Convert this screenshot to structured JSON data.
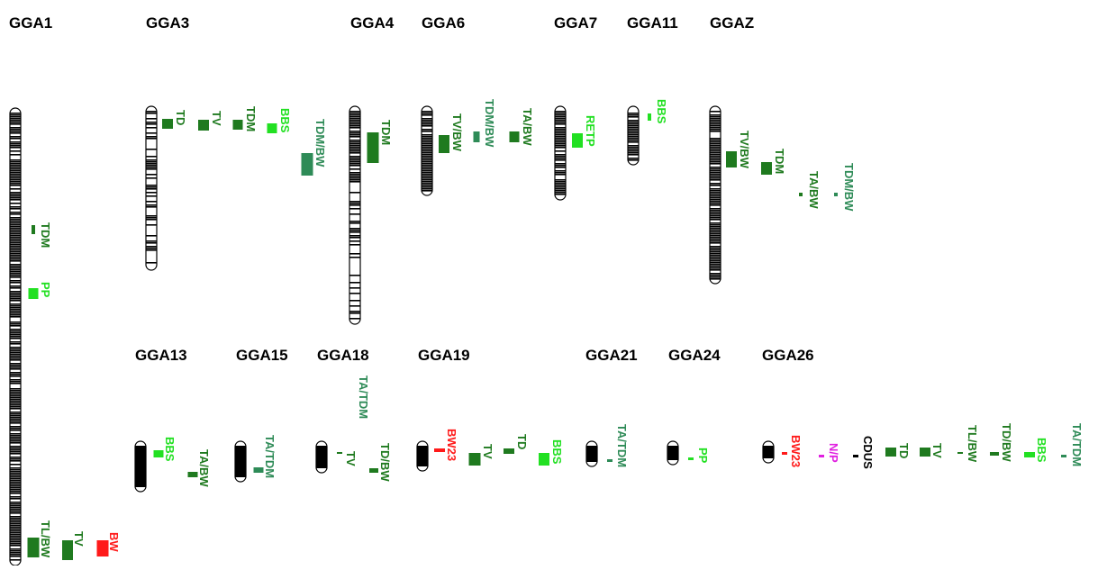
{
  "colors": {
    "dark_green": "#1f7a1f",
    "teal_green": "#2e8b57",
    "light_green": "#22e022",
    "red": "#ff1a1a",
    "magenta": "#e020e0",
    "black": "#000000"
  },
  "chromosomes": [
    {
      "title": "GGA1",
      "pattern": "dense",
      "qtls": [
        {
          "label": "TDM",
          "color": "dark_green"
        },
        {
          "label": "PP",
          "color": "light_green"
        },
        {
          "label": "TL/BW",
          "color": "dark_green"
        },
        {
          "label": "TV",
          "color": "dark_green"
        },
        {
          "label": "BW",
          "color": "red"
        }
      ]
    },
    {
      "title": "GGA3",
      "pattern": "banded",
      "qtls": [
        {
          "label": "TD",
          "color": "dark_green"
        },
        {
          "label": "TV",
          "color": "dark_green"
        },
        {
          "label": "TDM",
          "color": "dark_green"
        },
        {
          "label": "BBS",
          "color": "light_green"
        },
        {
          "label": "TDM/BW",
          "color": "teal_green"
        }
      ]
    },
    {
      "title": "GGA4",
      "pattern": "mixed",
      "qtls": [
        {
          "label": "TDM",
          "color": "dark_green"
        }
      ]
    },
    {
      "title": "GGA6",
      "pattern": "dense",
      "qtls": [
        {
          "label": "TV/BW",
          "color": "dark_green"
        },
        {
          "label": "TDM/BW",
          "color": "teal_green"
        },
        {
          "label": "TA/BW",
          "color": "dark_green"
        }
      ]
    },
    {
      "title": "GGA7",
      "pattern": "dense",
      "qtls": [
        {
          "label": "RETP",
          "color": "light_green"
        }
      ]
    },
    {
      "title": "GGA11",
      "pattern": "dense",
      "qtls": [
        {
          "label": "BBS",
          "color": "light_green"
        }
      ]
    },
    {
      "title": "GGAZ",
      "pattern": "dense",
      "qtls": [
        {
          "label": "TV/BW",
          "color": "dark_green"
        },
        {
          "label": "TDM",
          "color": "dark_green"
        },
        {
          "label": "TA/BW",
          "color": "dark_green"
        },
        {
          "label": "TDM/BW",
          "color": "teal_green"
        }
      ]
    },
    {
      "title": "GGA13",
      "pattern": "solid",
      "qtls": [
        {
          "label": "BBS",
          "color": "light_green"
        },
        {
          "label": "TA/BW",
          "color": "dark_green"
        }
      ]
    },
    {
      "title": "GGA15",
      "pattern": "solid",
      "qtls": [
        {
          "label": "TA/TDM",
          "color": "teal_green"
        }
      ]
    },
    {
      "title": "GGA18",
      "pattern": "solid",
      "qtls": [
        {
          "label": "TA/TDM",
          "color": "teal_green"
        },
        {
          "label": "TV",
          "color": "dark_green"
        },
        {
          "label": "TD/BW",
          "color": "dark_green"
        }
      ]
    },
    {
      "title": "GGA19",
      "pattern": "solid",
      "qtls": [
        {
          "label": "BW23",
          "color": "red"
        },
        {
          "label": "TV",
          "color": "dark_green"
        },
        {
          "label": "TD",
          "color": "dark_green"
        },
        {
          "label": "BBS",
          "color": "light_green"
        }
      ]
    },
    {
      "title": "GGA21",
      "pattern": "solid",
      "qtls": [
        {
          "label": "TA/TDM",
          "color": "teal_green"
        }
      ]
    },
    {
      "title": "GGA24",
      "pattern": "solid",
      "qtls": [
        {
          "label": "PP",
          "color": "light_green"
        }
      ]
    },
    {
      "title": "GGA26",
      "pattern": "solid",
      "qtls": [
        {
          "label": "BW23",
          "color": "red"
        },
        {
          "label": "N/P",
          "color": "magenta"
        },
        {
          "label": "CDUS",
          "color": "black"
        },
        {
          "label": "TD",
          "color": "dark_green"
        },
        {
          "label": "TV",
          "color": "dark_green"
        },
        {
          "label": "TL/BW",
          "color": "dark_green"
        },
        {
          "label": "TD/BW",
          "color": "dark_green"
        },
        {
          "label": "BBS",
          "color": "light_green"
        },
        {
          "label": "TA/TDM",
          "color": "teal_green"
        }
      ]
    }
  ]
}
